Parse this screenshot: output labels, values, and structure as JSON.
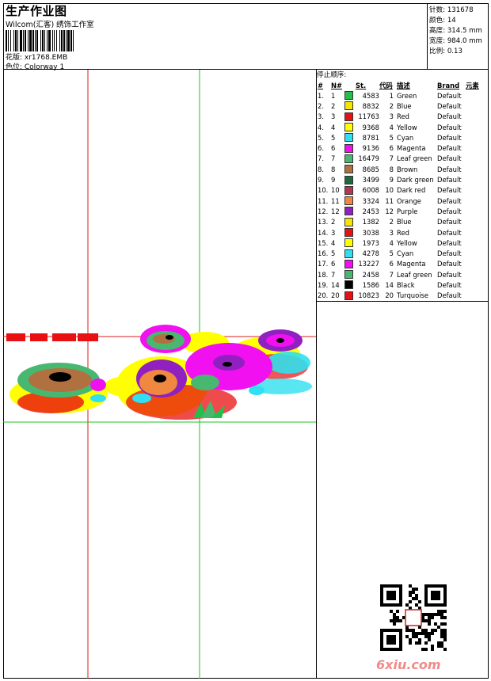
{
  "header": {
    "title": "生产作业图",
    "company": "Wilcom(汇客) 绣饰工作室",
    "design_label": "花版: xr1768.EMB",
    "colorway_label": "色位: Colorway 1"
  },
  "specs": {
    "stitches": "针数: 131678",
    "colors": "颜色: 14",
    "height": "高度: 314.5 mm",
    "width": "宽度: 984.0 mm",
    "scale": "比例: 0.13"
  },
  "stop_sequence": {
    "title": "停止顺序:",
    "headers": [
      "#",
      "N#",
      "St.",
      "代码",
      "描述",
      "Brand",
      "元素"
    ],
    "rows": [
      {
        "idx": "1.",
        "n": "1",
        "color": "#22c04a",
        "st": "4583",
        "code": "1",
        "desc": "Green",
        "brand": "Default"
      },
      {
        "idx": "2.",
        "n": "2",
        "color": "#f2e600",
        "st": "8832",
        "code": "2",
        "desc": "Blue",
        "brand": "Default"
      },
      {
        "idx": "3.",
        "n": "3",
        "color": "#e81010",
        "st": "11763",
        "code": "3",
        "desc": "Red",
        "brand": "Default"
      },
      {
        "idx": "4.",
        "n": "4",
        "color": "#ffff00",
        "st": "9368",
        "code": "4",
        "desc": "Yellow",
        "brand": "Default"
      },
      {
        "idx": "5.",
        "n": "5",
        "color": "#30e0f0",
        "st": "8781",
        "code": "5",
        "desc": "Cyan",
        "brand": "Default"
      },
      {
        "idx": "6.",
        "n": "6",
        "color": "#f010f0",
        "st": "9136",
        "code": "6",
        "desc": "Magenta",
        "brand": "Default"
      },
      {
        "idx": "7.",
        "n": "7",
        "color": "#48b870",
        "st": "16479",
        "code": "7",
        "desc": "Leaf green",
        "brand": "Default"
      },
      {
        "idx": "8.",
        "n": "8",
        "color": "#b07040",
        "st": "8685",
        "code": "8",
        "desc": "Brown",
        "brand": "Default"
      },
      {
        "idx": "9.",
        "n": "9",
        "color": "#1e6a3c",
        "st": "3499",
        "code": "9",
        "desc": "Dark green",
        "brand": "Default"
      },
      {
        "idx": "10.",
        "n": "10",
        "color": "#b03850",
        "st": "6008",
        "code": "10",
        "desc": "Dark red",
        "brand": "Default"
      },
      {
        "idx": "11.",
        "n": "11",
        "color": "#f08840",
        "st": "3324",
        "code": "11",
        "desc": "Orange",
        "brand": "Default"
      },
      {
        "idx": "12.",
        "n": "12",
        "color": "#9020c0",
        "st": "2453",
        "code": "12",
        "desc": "Purple",
        "brand": "Default"
      },
      {
        "idx": "13.",
        "n": "2",
        "color": "#f2e600",
        "st": "1382",
        "code": "2",
        "desc": "Blue",
        "brand": "Default"
      },
      {
        "idx": "14.",
        "n": "3",
        "color": "#e81010",
        "st": "3038",
        "code": "3",
        "desc": "Red",
        "brand": "Default"
      },
      {
        "idx": "15.",
        "n": "4",
        "color": "#ffff00",
        "st": "1973",
        "code": "4",
        "desc": "Yellow",
        "brand": "Default"
      },
      {
        "idx": "16.",
        "n": "5",
        "color": "#30e0f0",
        "st": "4278",
        "code": "5",
        "desc": "Cyan",
        "brand": "Default"
      },
      {
        "idx": "17.",
        "n": "6",
        "color": "#f010f0",
        "st": "13227",
        "code": "6",
        "desc": "Magenta",
        "brand": "Default"
      },
      {
        "idx": "18.",
        "n": "7",
        "color": "#48b870",
        "st": "2458",
        "code": "7",
        "desc": "Leaf green",
        "brand": "Default"
      },
      {
        "idx": "19.",
        "n": "14",
        "color": "#000000",
        "st": "1586",
        "code": "14",
        "desc": "Black",
        "brand": "Default"
      },
      {
        "idx": "20.",
        "n": "20",
        "color": "#e81010",
        "st": "10823",
        "code": "20",
        "desc": "Turquoise",
        "brand": "Default"
      }
    ]
  },
  "watermark": "6xiu.com",
  "qr_label": "qr-code-icon"
}
